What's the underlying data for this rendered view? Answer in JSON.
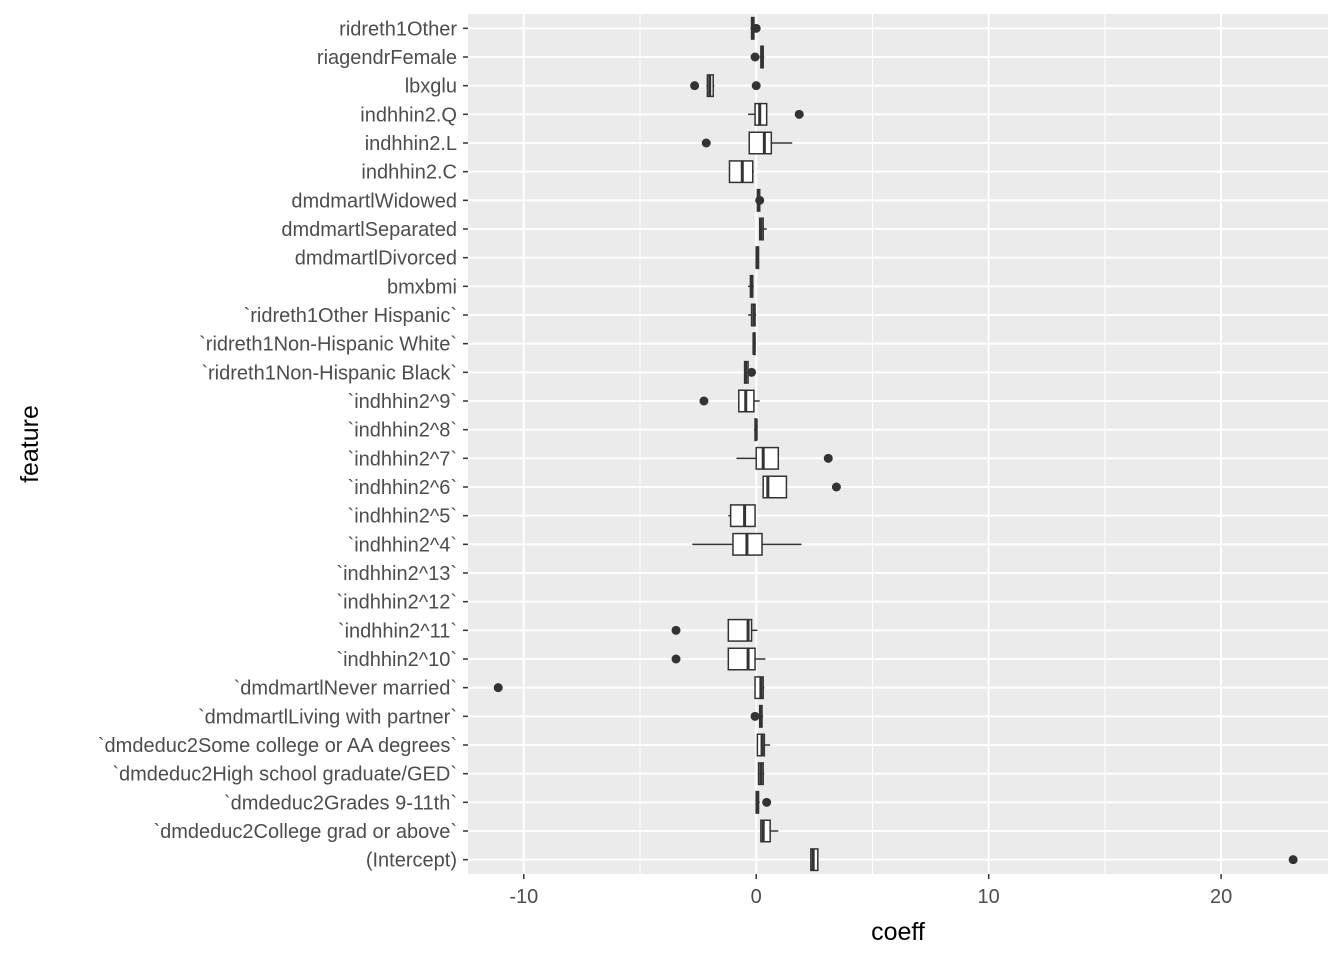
{
  "chart_data": {
    "type": "boxplot",
    "orientation": "horizontal",
    "xlabel": "coeff",
    "ylabel": "feature",
    "xlim": [
      -12.4,
      24.6
    ],
    "x_ticks": [
      -10,
      0,
      10,
      20
    ],
    "x_tick_labels": [
      "-10",
      "0",
      "10",
      "20"
    ],
    "grid": true,
    "panel_background": "#ebebeb",
    "grid_color": "#ffffff",
    "box_stroke": "#333333",
    "box_fill": "#ffffff",
    "outlier_color": "#333333",
    "categories": [
      {
        "label": "ridreth1Other",
        "box": [
          -0.25,
          -0.2,
          -0.15,
          -0.1,
          -0.05
        ],
        "outliers": [
          0.0
        ]
      },
      {
        "label": "riagendrFemale",
        "box": [
          0.15,
          0.2,
          0.25,
          0.3,
          0.35
        ],
        "outliers": [
          -0.05
        ]
      },
      {
        "label": "lbxglu",
        "box": [
          -2.15,
          -2.1,
          -2.0,
          -1.85,
          -1.8
        ],
        "outliers": [
          -2.65,
          0.0
        ]
      },
      {
        "label": "indhhin2.Q",
        "box": [
          -0.35,
          -0.05,
          0.15,
          0.45,
          0.45
        ],
        "outliers": [
          1.85
        ]
      },
      {
        "label": "indhhin2.L",
        "box": [
          -0.3,
          -0.3,
          0.35,
          0.65,
          1.55
        ],
        "outliers": [
          -2.15
        ]
      },
      {
        "label": "indhhin2.C",
        "box": [
          -1.15,
          -1.15,
          -0.6,
          -0.15,
          -0.1
        ],
        "outliers": []
      },
      {
        "label": "dmdmartlWidowed",
        "box": [
          0.05,
          0.05,
          0.1,
          0.15,
          0.15
        ],
        "outliers": [
          0.15
        ]
      },
      {
        "label": "dmdmartlSeparated",
        "box": [
          0.15,
          0.15,
          0.2,
          0.3,
          0.45
        ],
        "outliers": []
      },
      {
        "label": "dmdmartlDivorced",
        "box": [
          0.0,
          0.0,
          0.05,
          0.1,
          0.1
        ],
        "outliers": []
      },
      {
        "label": "bmxbmi",
        "box": [
          -0.35,
          -0.25,
          -0.2,
          -0.15,
          -0.1
        ],
        "outliers": []
      },
      {
        "label": "`ridreth1Other Hispanic`",
        "box": [
          -0.35,
          -0.2,
          -0.1,
          -0.05,
          0.0
        ],
        "outliers": []
      },
      {
        "label": "`ridreth1Non-Hispanic White`",
        "box": [
          -0.15,
          -0.12,
          -0.1,
          -0.05,
          -0.02
        ],
        "outliers": []
      },
      {
        "label": "`ridreth1Non-Hispanic Black`",
        "box": [
          -0.5,
          -0.5,
          -0.45,
          -0.35,
          -0.3
        ],
        "outliers": [
          -0.2
        ]
      },
      {
        "label": "`indhhin2^9`",
        "box": [
          -0.75,
          -0.75,
          -0.45,
          -0.1,
          0.15
        ],
        "outliers": [
          -2.25
        ]
      },
      {
        "label": "`indhhin2^8`",
        "box": [
          -0.1,
          -0.05,
          0.0,
          0.0,
          0.05
        ],
        "outliers": []
      },
      {
        "label": "`indhhin2^7`",
        "box": [
          -0.85,
          0.0,
          0.3,
          0.95,
          0.95
        ],
        "outliers": [
          3.1
        ]
      },
      {
        "label": "`indhhin2^6`",
        "box": [
          0.3,
          0.3,
          0.5,
          1.3,
          1.3
        ],
        "outliers": [
          3.45
        ]
      },
      {
        "label": "`indhhin2^5`",
        "box": [
          -1.2,
          -1.1,
          -0.5,
          -0.05,
          -0.05
        ],
        "outliers": []
      },
      {
        "label": "`indhhin2^4`",
        "box": [
          -2.75,
          -1.0,
          -0.4,
          0.25,
          1.95
        ],
        "outliers": []
      },
      {
        "label": "`indhhin2^13`",
        "box": null,
        "outliers": []
      },
      {
        "label": "`indhhin2^12`",
        "box": null,
        "outliers": []
      },
      {
        "label": "`indhhin2^11`",
        "box": [
          -1.2,
          -1.2,
          -0.35,
          -0.2,
          0.05
        ],
        "outliers": [
          -3.45
        ]
      },
      {
        "label": "`indhhin2^10`",
        "box": [
          -1.2,
          -1.2,
          -0.35,
          -0.05,
          0.4
        ],
        "outliers": [
          -3.45
        ]
      },
      {
        "label": "`dmdmartlNever married`",
        "box": [
          -0.05,
          -0.05,
          0.2,
          0.3,
          0.35
        ],
        "outliers": [
          -11.1
        ]
      },
      {
        "label": "`dmdmartlLiving with partner`",
        "box": [
          0.15,
          0.15,
          0.2,
          0.25,
          0.3
        ],
        "outliers": [
          -0.05
        ]
      },
      {
        "label": "`dmdeduc2Some college or AA degrees`",
        "box": [
          0.05,
          0.05,
          0.25,
          0.35,
          0.6
        ],
        "outliers": []
      },
      {
        "label": "`dmdeduc2High school graduate/GED`",
        "box": [
          0.1,
          0.1,
          0.2,
          0.3,
          0.35
        ],
        "outliers": []
      },
      {
        "label": "`dmdeduc2Grades 9-11th`",
        "box": [
          0.0,
          0.0,
          0.05,
          0.1,
          0.15
        ],
        "outliers": [
          0.45
        ]
      },
      {
        "label": "`dmdeduc2College grad or above`",
        "box": [
          0.2,
          0.2,
          0.3,
          0.6,
          0.95
        ],
        "outliers": []
      },
      {
        "label": "(Intercept)",
        "box": [
          2.35,
          2.35,
          2.45,
          2.65,
          2.65
        ],
        "outliers": [
          23.1
        ]
      }
    ]
  }
}
